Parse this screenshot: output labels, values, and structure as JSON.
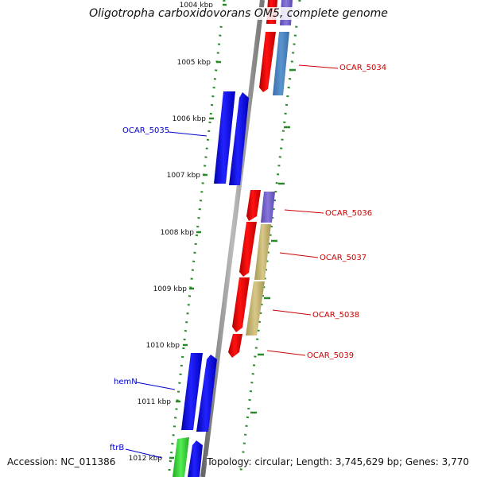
{
  "title": "Oligotropha carboxidovorans OM5, complete genome",
  "footer": {
    "accession": "Accession: NC_011386",
    "summary": "Topology: circular; Length: 3,745,629 bp; Genes: 3,770"
  },
  "ruler": {
    "labels": [
      "1004 kbp",
      "1005 kbp",
      "1006 kbp",
      "1007 kbp",
      "1008 kbp",
      "1009 kbp",
      "1010 kbp",
      "1011 kbp",
      "1012 kbp"
    ]
  },
  "gene_labels": {
    "left": [
      {
        "text": "OCAR_5035",
        "color": "#0000cc"
      },
      {
        "text": "hemN",
        "color": "#0000cc"
      },
      {
        "text": "ftrB",
        "color": "#0000cc"
      }
    ],
    "right": [
      {
        "text": "OCAR_5034",
        "color": "#cc0000"
      },
      {
        "text": "OCAR_5036",
        "color": "#cc0000"
      },
      {
        "text": "OCAR_5037",
        "color": "#cc0000"
      },
      {
        "text": "OCAR_5038",
        "color": "#cc0000"
      },
      {
        "text": "OCAR_5039",
        "color": "#cc0000"
      }
    ]
  },
  "colors": {
    "forward_gene": "#0000ee",
    "reverse_gene": "#ee0000",
    "cog_purple": "#7766cc",
    "cog_steel": "#4f86c0",
    "cog_khaki": "#c8b878",
    "cog_green": "#33cc33",
    "backbone": "#8a8a8a",
    "ticks": "#2a8a2a"
  }
}
